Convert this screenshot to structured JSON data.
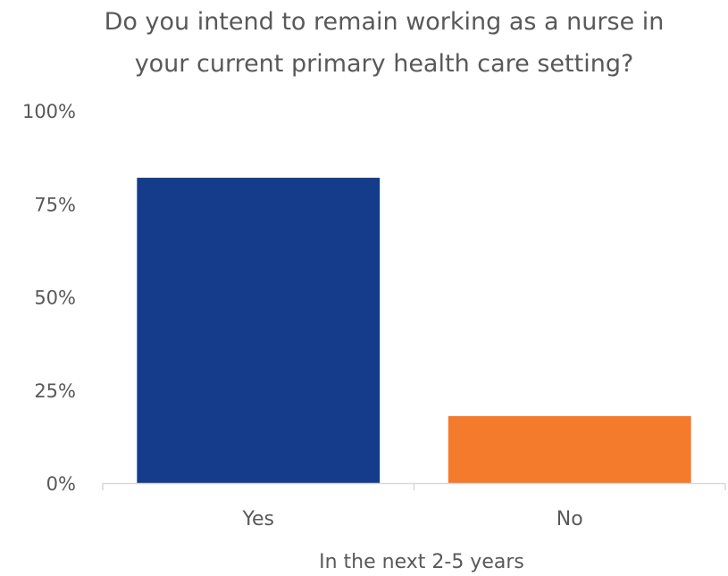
{
  "chart_data": {
    "type": "bar",
    "title_lines": [
      "Do you intend to remain working as a nurse in",
      "your current primary health care setting?"
    ],
    "xlabel": "In the next 2-5 years",
    "ylabel": "",
    "categories": [
      "Yes",
      "No"
    ],
    "values": [
      82,
      18
    ],
    "bar_colors": [
      "#153C8A",
      "#F47A2C"
    ],
    "ylim": [
      0,
      100
    ],
    "y_ticks": [
      0,
      25,
      50,
      75,
      100
    ],
    "y_tick_labels": [
      "0%",
      "25%",
      "50%",
      "75%",
      "100%"
    ],
    "grid": false,
    "legend": "none"
  }
}
